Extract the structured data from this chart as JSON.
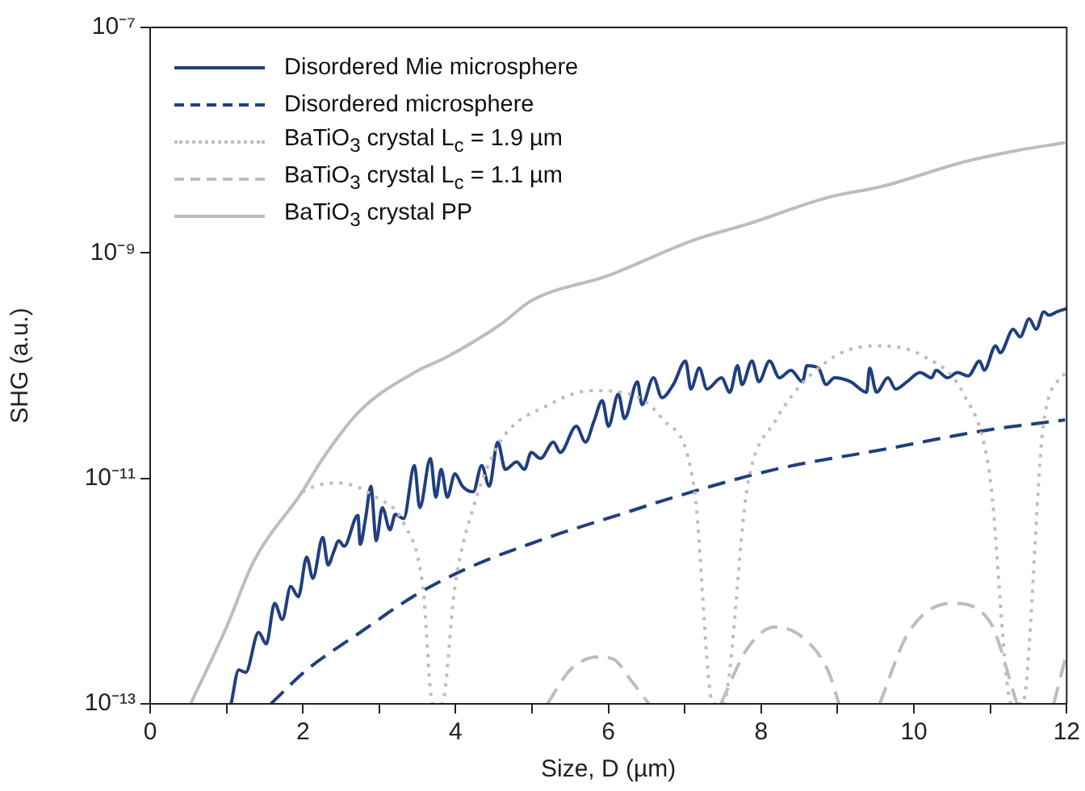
{
  "chart_data": {
    "type": "line",
    "xlabel": "Size, D (µm)",
    "ylabel": "SHG (a.u.)",
    "log": "y",
    "grid": false,
    "legend": "top left",
    "marker": "none",
    "xlim": [
      0,
      12
    ],
    "xticks": [
      0,
      {
        "value": 1,
        "label": null
      },
      2,
      {
        "value": 3,
        "label": null
      },
      4,
      {
        "value": 5,
        "label": null
      },
      6,
      {
        "value": 7,
        "label": null
      },
      8,
      {
        "value": 9,
        "label": null
      },
      10,
      {
        "value": 11,
        "label": null
      },
      12
    ],
    "ylim": [
      1e-13,
      1e-07
    ],
    "yticks": [
      {
        "value": 1e-13,
        "label": "10⁻¹³"
      },
      {
        "value": 1e-11,
        "label": "10⁻¹¹"
      },
      {
        "value": 1e-09,
        "label": "10⁻⁹"
      },
      {
        "value": 1e-07,
        "label": "10⁻⁷"
      }
    ],
    "series": [
      {
        "name": "Disordered Mie microsphere",
        "color": "#1f3f7f",
        "line_style": "solid",
        "x": [
          1.06,
          1.16,
          1.25,
          1.42,
          1.52,
          1.63,
          1.73,
          1.84,
          1.94,
          2.05,
          2.13,
          2.26,
          2.33,
          2.4,
          2.47,
          2.54,
          2.72,
          2.75,
          2.82,
          2.89,
          2.96,
          3.04,
          3.14,
          3.21,
          3.32,
          3.46,
          3.53,
          3.67,
          3.74,
          3.81,
          3.89,
          3.99,
          4.09,
          4.23,
          4.34,
          4.44,
          4.55,
          4.65,
          4.8,
          4.9,
          4.99,
          5.11,
          5.28,
          5.37,
          5.58,
          5.7,
          5.81,
          5.92,
          6.0,
          6.13,
          6.21,
          6.38,
          6.44,
          6.59,
          6.7,
          6.85,
          7.01,
          7.08,
          7.19,
          7.29,
          7.48,
          7.59,
          7.69,
          7.75,
          7.88,
          7.97,
          8.11,
          8.24,
          8.39,
          8.54,
          8.6,
          8.75,
          8.85,
          8.96,
          9.17,
          9.38,
          9.42,
          9.51,
          9.66,
          9.76,
          9.91,
          10.08,
          10.23,
          10.29,
          10.44,
          10.57,
          10.71,
          10.86,
          10.92,
          11.07,
          11.13,
          11.3,
          11.39,
          11.51,
          11.6,
          11.7,
          11.77,
          11.87,
          12.0
        ],
        "values": [
          1e-13,
          2e-13,
          1.9e-13,
          4.3e-13,
          3.4e-13,
          7.8e-13,
          5.6e-13,
          1.1e-12,
          8.9e-13,
          2e-12,
          1.3e-12,
          3e-12,
          1.7e-12,
          2.2e-12,
          2.8e-12,
          2.5e-12,
          4.7e-12,
          2.6e-12,
          4.4e-12,
          8.5e-12,
          2.8e-12,
          5.5e-12,
          3.5e-12,
          4.8e-12,
          4.4e-12,
          1.3e-11,
          5.5e-12,
          1.5e-11,
          6.8e-12,
          1.2e-11,
          6.8e-12,
          1.1e-11,
          8.5e-12,
          7.6e-12,
          1.3e-11,
          8.5e-12,
          2.1e-11,
          1.2e-11,
          1.4e-11,
          1.2e-11,
          1.7e-11,
          1.5e-11,
          2.1e-11,
          1.7e-11,
          2.9e-11,
          2.1e-11,
          3.2e-11,
          4.9e-11,
          2.9e-11,
          5.6e-11,
          3.4e-11,
          7.2e-11,
          4.5e-11,
          7.8e-11,
          5.2e-11,
          6.8e-11,
          1.1e-10,
          6.2e-11,
          9.5e-11,
          6.2e-11,
          7.8e-11,
          5.8e-11,
          1e-10,
          6.8e-11,
          1.1e-10,
          7.2e-11,
          1.1e-10,
          7.8e-11,
          9.1e-11,
          7.2e-11,
          1e-10,
          9.5e-11,
          6.8e-11,
          7.8e-11,
          7.2e-11,
          5.8e-11,
          9.5e-11,
          5.8e-11,
          7.8e-11,
          6.2e-11,
          7.2e-11,
          8.7e-11,
          7.8e-11,
          9.1e-11,
          7.8e-11,
          8.7e-11,
          8.1e-11,
          1.1e-10,
          9.1e-11,
          1.5e-10,
          1.3e-10,
          2.1e-10,
          1.8e-10,
          2.6e-10,
          2.1e-10,
          3e-10,
          2.8e-10,
          3e-10,
          3.2e-10
        ]
      },
      {
        "name": "Disordered microsphere",
        "color": "#1f3f7f",
        "line_style": "dashed",
        "x": [
          1.58,
          2.05,
          2.75,
          3.46,
          4.16,
          5.22,
          6.28,
          6.76,
          8.18,
          9.59,
          10.99,
          11.98
        ],
        "values": [
          1e-13,
          2e-13,
          4.3e-13,
          9.1e-13,
          1.6e-12,
          3e-12,
          5.1e-12,
          6.5e-12,
          1.2e-11,
          1.8e-11,
          2.7e-11,
          3.3e-11
        ]
      },
      {
        "name": "BaTiO$_{3}$ crystal L$_{c}$ = 1.9 µm",
        "color": "#bdbdbd",
        "line_style": "dotted",
        "x": [
          1.99,
          2.2,
          2.47,
          2.96,
          3.32,
          3.57,
          3.7,
          3.82,
          3.99,
          4.23,
          4.58,
          5.22,
          5.79,
          6.28,
          6.7,
          7.12,
          7.37,
          7.5,
          7.82,
          8.18,
          8.87,
          9.51,
          10.14,
          10.65,
          10.99,
          11.28,
          11.42,
          11.7,
          11.98
        ],
        "values": [
          7.6e-12,
          8.7e-12,
          9.1e-12,
          6.8e-12,
          4e-12,
          1.1e-12,
          1e-13,
          1e-13,
          1.1e-12,
          5.5e-12,
          2.1e-11,
          4.5e-11,
          6e-11,
          5.6e-11,
          3.4e-11,
          8.5e-12,
          1e-13,
          1e-13,
          8.5e-12,
          3.2e-11,
          1.1e-10,
          1.5e-10,
          1.2e-10,
          5.6e-11,
          1.1e-11,
          1e-13,
          1e-13,
          3.2e-11,
          8.7e-11
        ]
      },
      {
        "name": "BaTiO$_{3}$ crystal L$_{c}$ = 1.1 µm",
        "color": "#bdbdbd",
        "line_style": "dashed",
        "x": [
          5.2,
          5.5,
          5.85,
          6.06,
          6.3,
          6.53,
          7.0,
          7.47,
          7.82,
          8.18,
          8.54,
          8.87,
          9.02,
          9.3,
          9.55,
          9.93,
          10.5,
          10.99,
          11.35,
          11.6,
          11.83,
          11.98
        ],
        "values": [
          1e-13,
          2e-13,
          2.6e-13,
          2.5e-13,
          1.6e-13,
          1e-13,
          null,
          1e-13,
          3.1e-13,
          4.8e-13,
          3.9e-13,
          2e-13,
          1e-13,
          null,
          1e-13,
          4.3e-13,
          7.8e-13,
          5.4e-13,
          1e-13,
          null,
          1e-13,
          2.5e-13
        ]
      },
      {
        "name": "BaTiO$_{3}$ crystal PP",
        "color": "#bdbdbd",
        "line_style": "solid",
        "x": [
          0.53,
          1.0,
          1.35,
          1.99,
          2.26,
          2.75,
          3.46,
          3.89,
          4.58,
          5.0,
          6.0,
          7.12,
          7.82,
          8.87,
          9.59,
          10.65,
          11.35,
          11.98
        ],
        "values": [
          1e-13,
          4.8e-13,
          1.8e-12,
          7.6e-12,
          1.5e-11,
          4e-11,
          8.7e-11,
          1.2e-10,
          2.3e-10,
          3.8e-10,
          6.3e-10,
          1.3e-09,
          1.8e-09,
          3.1e-09,
          3.9e-09,
          6.4e-09,
          8.1e-09,
          9.5e-09
        ]
      }
    ]
  }
}
